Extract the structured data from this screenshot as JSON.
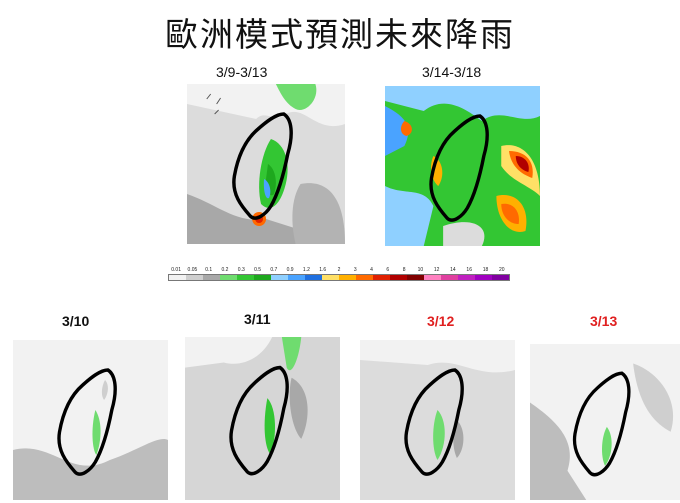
{
  "title": "歐洲模式預測未來降雨",
  "top_maps": [
    {
      "label": "3/9-3/13"
    },
    {
      "label": "3/14-3/18"
    }
  ],
  "bottom_maps": [
    {
      "label": "3/10",
      "color": "#111111"
    },
    {
      "label": "3/11",
      "color": "#111111"
    },
    {
      "label": "3/12",
      "color": "#e02020"
    },
    {
      "label": "3/13",
      "color": "#e02020"
    }
  ],
  "colorbar": {
    "ticks": [
      "0.01",
      "0.05",
      "0.1",
      "0.2",
      "0.3",
      "0.5",
      "0.7",
      "0.9",
      "1.2",
      "1.6",
      "2",
      "3",
      "4",
      "6",
      "8",
      "10",
      "12",
      "14",
      "16",
      "18",
      "20"
    ],
    "colors": [
      "#f2f2f2",
      "#cfcfcf",
      "#a8a8a8",
      "#6fdc6f",
      "#33c633",
      "#1ea81e",
      "#8fd0ff",
      "#4aa3ff",
      "#1f6fe0",
      "#ffe066",
      "#ffb000",
      "#ff6a00",
      "#e02000",
      "#b00000",
      "#800000",
      "#ff80c0",
      "#e040a0",
      "#c020c0",
      "#a000c0",
      "#8000a0"
    ]
  }
}
